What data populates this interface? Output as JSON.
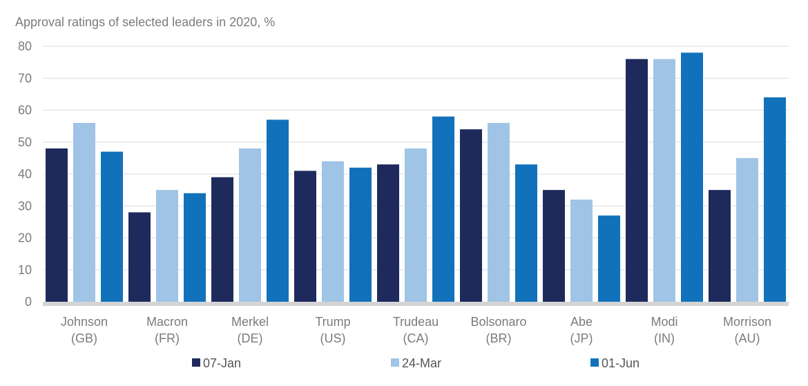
{
  "chart_data": {
    "type": "bar",
    "title": "Approval ratings of selected leaders in 2020, %",
    "xlabel": "",
    "ylabel": "",
    "ylim": [
      0,
      80
    ],
    "yticks": [
      "0",
      "10",
      "20",
      "30",
      "40",
      "50",
      "60",
      "70",
      "80"
    ],
    "grid": true,
    "legend_position": "bottom",
    "categories": [
      [
        "Johnson",
        "(GB)"
      ],
      [
        "Macron",
        "(FR)"
      ],
      [
        "Merkel",
        "(DE)"
      ],
      [
        "Trump",
        "(US)"
      ],
      [
        "Trudeau",
        "(CA)"
      ],
      [
        "Bolsonaro",
        "(BR)"
      ],
      [
        "Abe",
        "(JP)"
      ],
      [
        "Modi",
        "(IN)"
      ],
      [
        "Morrison",
        "(AU)"
      ]
    ],
    "series": [
      {
        "name": "07-Jan",
        "color": "#1f2a5c",
        "values": [
          48,
          28,
          39,
          41,
          43,
          54,
          35,
          76,
          35
        ]
      },
      {
        "name": "24-Mar",
        "color": "#a0c4e6",
        "values": [
          56,
          35,
          48,
          44,
          48,
          56,
          32,
          76,
          45
        ]
      },
      {
        "name": "01-Jun",
        "color": "#1172bb",
        "values": [
          47,
          34,
          57,
          42,
          58,
          43,
          27,
          78,
          64
        ]
      }
    ]
  }
}
